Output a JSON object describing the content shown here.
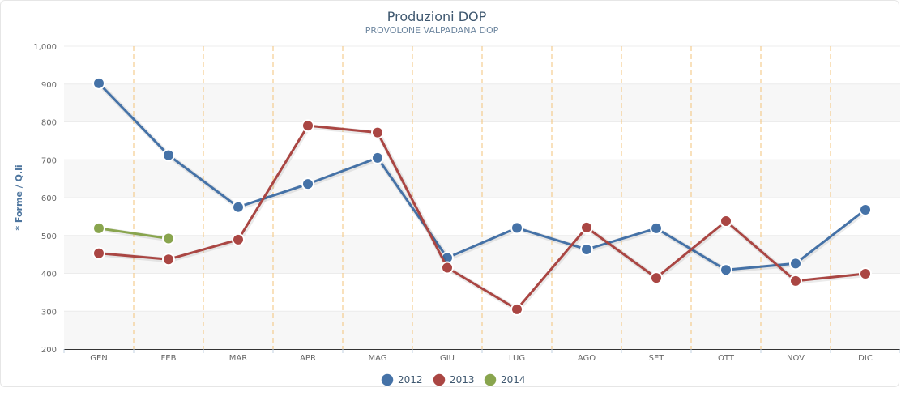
{
  "chart_data": {
    "type": "line",
    "title": "Produzioni DOP",
    "subtitle": "PROVOLONE VALPADANA DOP",
    "xlabel": "",
    "ylabel": "* Forme / Q.li",
    "categories": [
      "GEN",
      "FEB",
      "MAR",
      "APR",
      "MAG",
      "GIU",
      "LUG",
      "AGO",
      "SET",
      "OTT",
      "NOV",
      "DIC"
    ],
    "ylim": [
      200,
      1000
    ],
    "yticks": [
      200,
      300,
      400,
      500,
      600,
      700,
      800,
      900,
      1000
    ],
    "ytick_labels": [
      "200",
      "300",
      "400",
      "500",
      "600",
      "700",
      "800",
      "900",
      "1,000"
    ],
    "grid": true,
    "alternate_bands": true,
    "vertical_dashed_separators": true,
    "legend_position": "bottom-center",
    "series": [
      {
        "name": "2012",
        "color": "#4572a7",
        "values": [
          902,
          712,
          575,
          636,
          705,
          441,
          520,
          463,
          519,
          409,
          426,
          568
        ]
      },
      {
        "name": "2013",
        "color": "#aa4643",
        "values": [
          453,
          437,
          489,
          790,
          772,
          415,
          305,
          521,
          388,
          538,
          380,
          399
        ]
      },
      {
        "name": "2014",
        "color": "#89a54e",
        "values": [
          519,
          492,
          null,
          null,
          null,
          null,
          null,
          null,
          null,
          null,
          null,
          null
        ]
      }
    ]
  }
}
